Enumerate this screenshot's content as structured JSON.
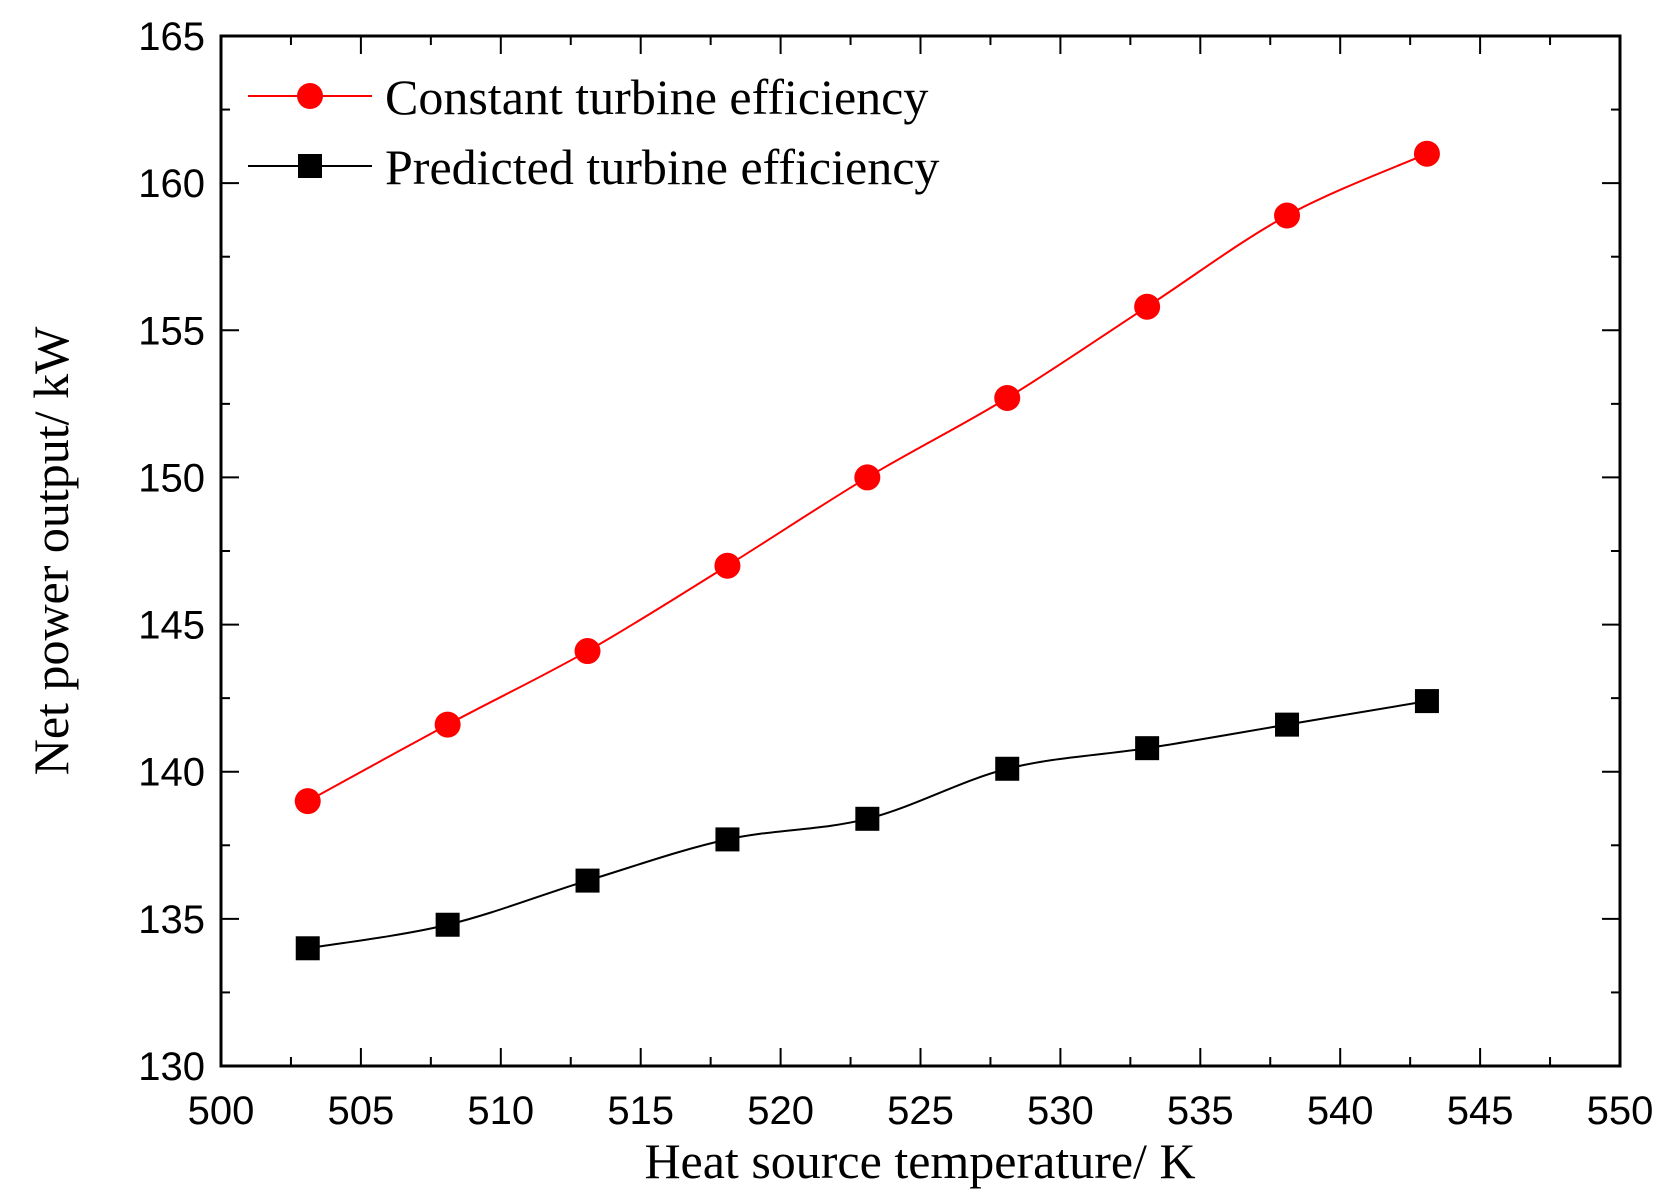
{
  "chart_data": {
    "type": "line",
    "title": "",
    "xlabel": "Heat source temperature/ K",
    "ylabel": "Net power output/ kW",
    "xlim": [
      500,
      550
    ],
    "ylim": [
      130,
      165
    ],
    "x_ticks": [
      500,
      505,
      510,
      515,
      520,
      525,
      530,
      535,
      540,
      545,
      550
    ],
    "y_ticks": [
      130,
      135,
      140,
      145,
      150,
      155,
      160,
      165
    ],
    "x_tick_labels": [
      "500",
      "505",
      "510",
      "515",
      "520",
      "525",
      "530",
      "535",
      "540",
      "545",
      "550"
    ],
    "y_tick_labels": [
      "130",
      "135",
      "140",
      "145",
      "150",
      "155",
      "160",
      "165"
    ],
    "grid": false,
    "legend_position": "top-left",
    "x": [
      503.1,
      508.1,
      513.1,
      518.1,
      523.1,
      528.1,
      533.1,
      538.1,
      543.1
    ],
    "series": [
      {
        "name": "Constant turbine efficiency",
        "color": "#ff0000",
        "marker": "circle",
        "values": [
          139.0,
          141.6,
          144.1,
          147.0,
          150.0,
          152.7,
          155.8,
          158.9,
          161.0
        ]
      },
      {
        "name": "Predicted turbine efficiency",
        "color": "#000000",
        "marker": "square",
        "values": [
          134.0,
          134.8,
          136.3,
          137.7,
          138.4,
          140.1,
          140.8,
          141.6,
          142.4
        ]
      }
    ]
  }
}
